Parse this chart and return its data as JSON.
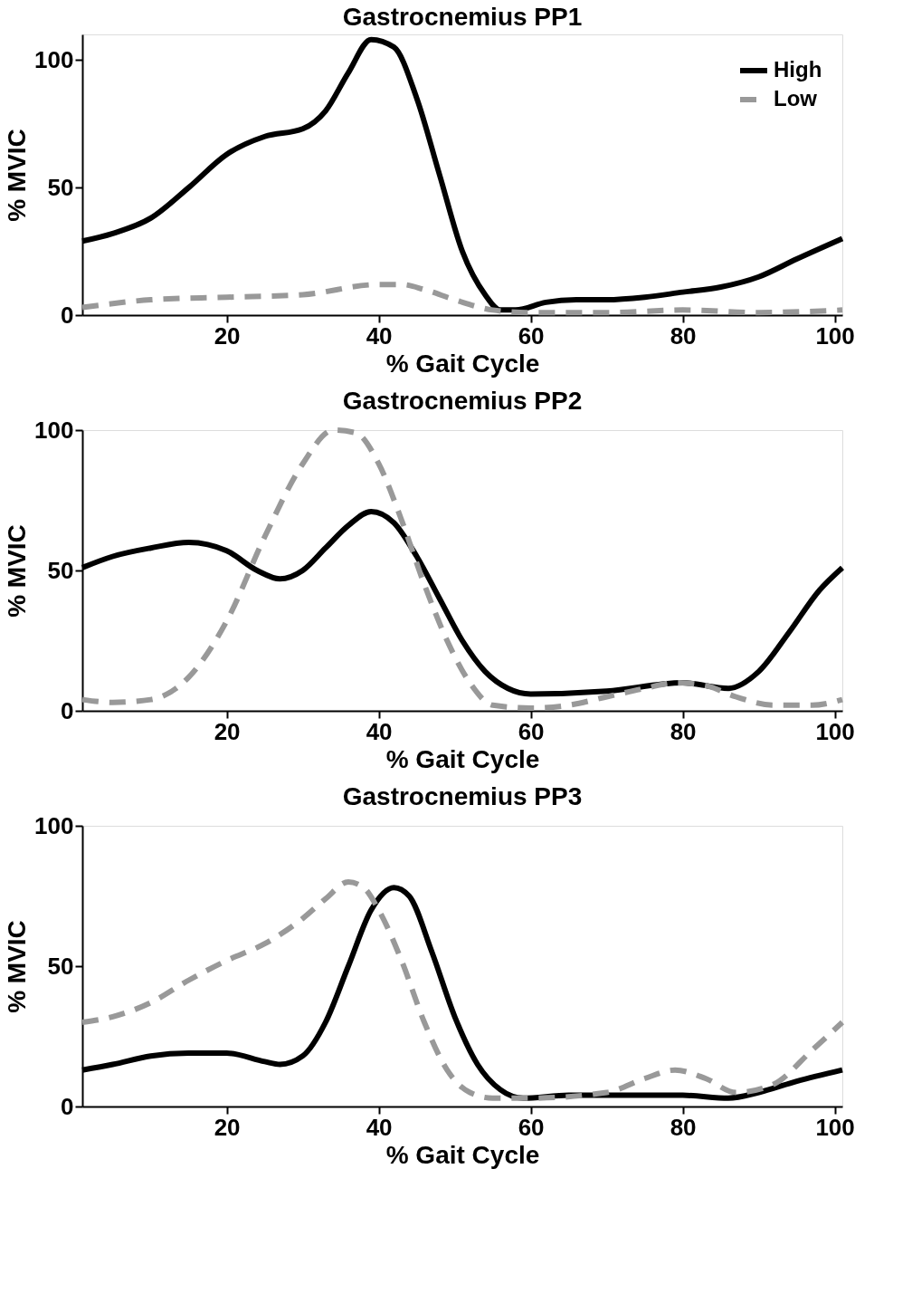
{
  "chart_data": [
    {
      "type": "line",
      "title": "Gastrocnemius PP1",
      "xlabel": "% Gait Cycle",
      "ylabel": "% MVIC",
      "xlim": [
        1,
        101
      ],
      "ylim": [
        0,
        110
      ],
      "xticks": [
        20,
        40,
        60,
        80,
        100
      ],
      "yticks": [
        0,
        50,
        100
      ],
      "grid": false,
      "legend": "top right",
      "marker": "none",
      "series": [
        {
          "name": "High",
          "color": "#000000",
          "line_style": "solid",
          "x": [
            1,
            5,
            10,
            15,
            20,
            25,
            30,
            33,
            36,
            39,
            42,
            45,
            48,
            51,
            54,
            56,
            58,
            62,
            66,
            70,
            75,
            80,
            85,
            90,
            95,
            101
          ],
          "values": [
            29,
            32,
            38,
            50,
            63,
            70,
            73,
            80,
            95,
            108,
            105,
            85,
            55,
            25,
            8,
            2,
            2,
            5,
            6,
            6,
            7,
            9,
            11,
            15,
            22,
            30
          ]
        },
        {
          "name": "Low",
          "color": "#999999",
          "line_style": "dashed",
          "x": [
            1,
            10,
            20,
            30,
            40,
            43,
            46,
            50,
            55,
            60,
            70,
            80,
            90,
            101
          ],
          "values": [
            3,
            6,
            7,
            8,
            12,
            12,
            10,
            6,
            2,
            1,
            1,
            2,
            1,
            2
          ]
        }
      ]
    },
    {
      "type": "line",
      "title": "Gastrocnemius PP2",
      "xlabel": "% Gait Cycle",
      "ylabel": "% MVIC",
      "xlim": [
        1,
        101
      ],
      "ylim": [
        0,
        100
      ],
      "xticks": [
        20,
        40,
        60,
        80,
        100
      ],
      "yticks": [
        0,
        50,
        100
      ],
      "grid": false,
      "marker": "none",
      "series": [
        {
          "color": "#000000",
          "line_style": "solid",
          "x": [
            1,
            5,
            10,
            15,
            20,
            24,
            27,
            30,
            33,
            36,
            39,
            42,
            45,
            48,
            51,
            54,
            57,
            60,
            70,
            80,
            86,
            90,
            94,
            98,
            101
          ],
          "values": [
            51,
            55,
            58,
            60,
            57,
            50,
            47,
            50,
            58,
            66,
            71,
            67,
            55,
            40,
            25,
            14,
            8,
            6,
            7,
            10,
            8,
            14,
            28,
            43,
            51
          ]
        },
        {
          "color": "#999999",
          "line_style": "dashed",
          "x": [
            1,
            5,
            10,
            15,
            20,
            25,
            30,
            34,
            37,
            40,
            43,
            46,
            49,
            52,
            55,
            60,
            65,
            70,
            75,
            79,
            83,
            87,
            92,
            97,
            101
          ],
          "values": [
            4,
            3,
            4,
            12,
            32,
            62,
            88,
            100,
            99,
            88,
            68,
            45,
            25,
            10,
            2,
            1,
            2,
            5,
            8,
            10,
            9,
            5,
            2,
            2,
            4
          ]
        }
      ]
    },
    {
      "type": "line",
      "title": "Gastrocnemius PP3",
      "xlabel": "% Gait Cycle",
      "ylabel": "% MVIC",
      "xlim": [
        1,
        101
      ],
      "ylim": [
        0,
        100
      ],
      "xticks": [
        20,
        40,
        60,
        80,
        100
      ],
      "yticks": [
        0,
        50,
        100
      ],
      "grid": false,
      "marker": "none",
      "series": [
        {
          "color": "#000000",
          "line_style": "solid",
          "x": [
            1,
            5,
            10,
            15,
            20,
            25,
            27,
            30,
            33,
            36,
            39,
            42,
            44,
            47,
            50,
            53,
            56,
            59,
            65,
            70,
            80,
            86,
            90,
            95,
            101
          ],
          "values": [
            13,
            15,
            18,
            19,
            19,
            16,
            15,
            18,
            30,
            50,
            70,
            78,
            75,
            55,
            32,
            15,
            6,
            3,
            4,
            4,
            4,
            3,
            5,
            9,
            13
          ]
        },
        {
          "color": "#999999",
          "line_style": "dashed",
          "x": [
            1,
            5,
            10,
            15,
            20,
            25,
            30,
            33,
            36,
            38,
            40,
            43,
            46,
            49,
            52,
            55,
            60,
            70,
            75,
            79,
            83,
            87,
            92,
            97,
            101
          ],
          "values": [
            30,
            32,
            37,
            45,
            52,
            58,
            67,
            74,
            80,
            78,
            70,
            52,
            30,
            13,
            5,
            3,
            3,
            5,
            10,
            13,
            10,
            5,
            8,
            20,
            30
          ]
        }
      ]
    }
  ]
}
